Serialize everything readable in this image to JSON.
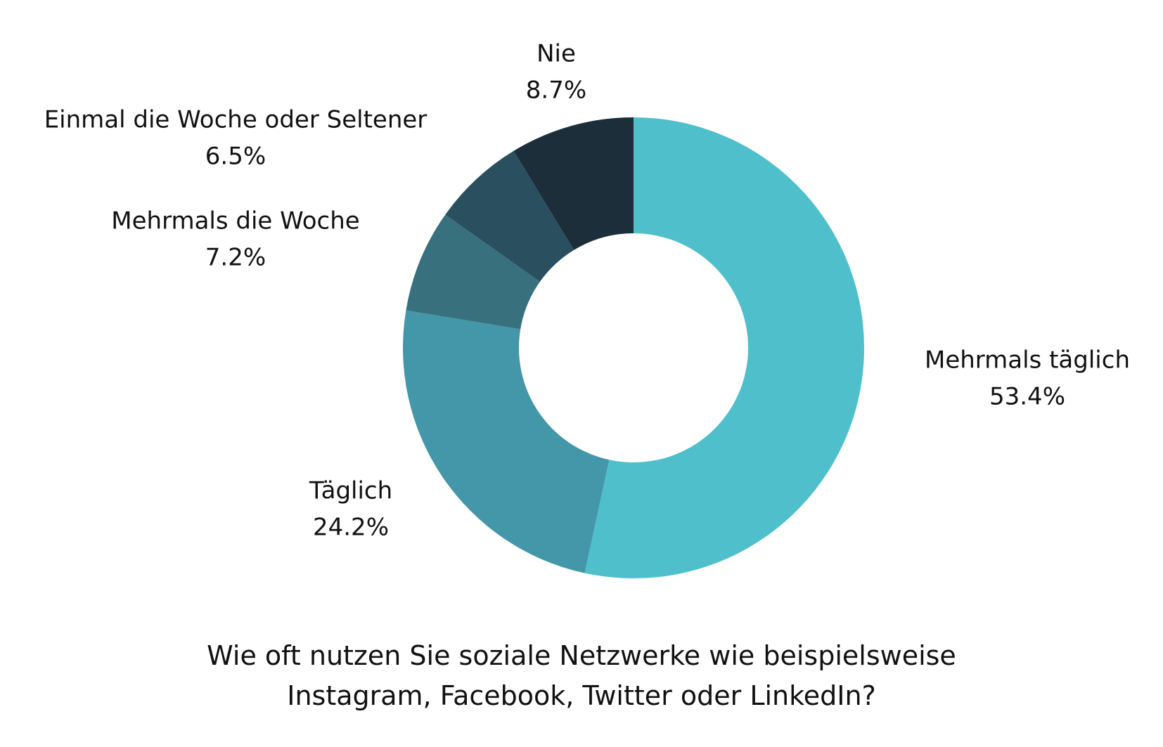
{
  "chart_data": {
    "type": "donut",
    "title": "Wie oft nutzen Sie soziale Netzwerke wie beispielsweise\nInstagram, Facebook, Twitter oder LinkedIn?",
    "categories": [
      "Mehrmals täglich",
      "Täglich",
      "Mehrmals die Woche",
      "Einmal die Woche oder Seltener",
      "Nie"
    ],
    "values": [
      53.4,
      24.2,
      7.2,
      6.5,
      8.7
    ],
    "value_labels": [
      "53.4%",
      "24.2%",
      "7.2%",
      "6.5%",
      "8.7%"
    ],
    "colors": [
      "#4fbfcc",
      "#4397a8",
      "#38707e",
      "#2a4f5f",
      "#1c2e3a"
    ]
  }
}
